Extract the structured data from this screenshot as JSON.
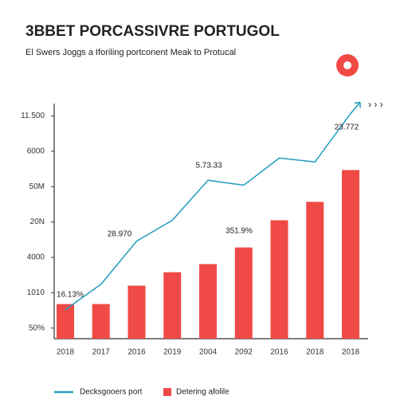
{
  "chart_data": {
    "type": "bar",
    "title": "3BBET PORCASSIVRE PORTUGOL",
    "subtitle": "El Swers Joggs a Iforiling portconent Meak to Protucal",
    "categories": [
      "2018",
      "2017",
      "2016",
      "2019",
      "2004",
      "2092",
      "2016",
      "2018",
      "2018"
    ],
    "series": [
      {
        "name": "Decksgooers port",
        "type": "line",
        "color": "#2a9fc0",
        "values": [
          1.52,
          2.24,
          3.46,
          4.05,
          5.18,
          5.04,
          5.81,
          5.7,
          7.07
        ]
      },
      {
        "name": "Detering afolile",
        "type": "bar",
        "color": "#f04a46",
        "values": [
          1.68,
          1.68,
          2.2,
          2.58,
          2.81,
          3.28,
          4.05,
          4.57,
          5.47
        ]
      }
    ],
    "annotations": [
      "16.13%",
      "28.970",
      "5.73.33",
      "351.9%",
      "23.772"
    ],
    "ylim": [
      0.7,
      7.35
    ],
    "yticks": [
      {
        "value": 1,
        "label": "50%"
      },
      {
        "value": 2,
        "label": "1010"
      },
      {
        "value": 3,
        "label": "4000"
      },
      {
        "value": 4,
        "label": "20N"
      },
      {
        "value": 5,
        "label": "50M"
      },
      {
        "value": 6,
        "label": "6000"
      },
      {
        "value": 7,
        "label": "11.500"
      }
    ]
  }
}
